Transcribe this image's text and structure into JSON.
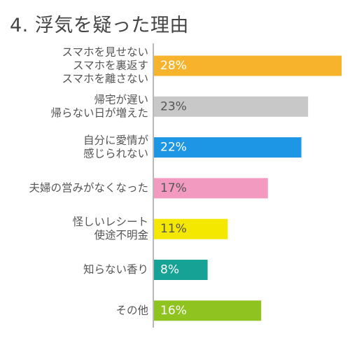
{
  "chart_data": {
    "type": "bar",
    "orientation": "horizontal",
    "title": "4. 浮気を疑った理由",
    "categories": [
      "スマホを見せない\nスマホを裏返す\nスマホを離さない",
      "帰宅が遅い\n帰らない日が増えた",
      "自分に愛情が\n感じられない",
      "夫婦の営みがなくなった",
      "怪しいレシート\n使途不明金",
      "知らない香り",
      "その他"
    ],
    "values": [
      28,
      23,
      22,
      17,
      11,
      8,
      16
    ],
    "value_labels": [
      "28%",
      "23%",
      "22%",
      "17%",
      "11%",
      "8%",
      "16%"
    ],
    "bar_colors": [
      "#f7b32b",
      "#c8c8c8",
      "#1e96e6",
      "#f29ac0",
      "#f5e800",
      "#16a395",
      "#8fc31f"
    ],
    "label_colors": [
      "#ffffff",
      "#555555",
      "#ffffff",
      "#555555",
      "#555555",
      "#ffffff",
      "#ffffff"
    ],
    "xlim": [
      0,
      28
    ],
    "grid": false,
    "legend": "none"
  }
}
